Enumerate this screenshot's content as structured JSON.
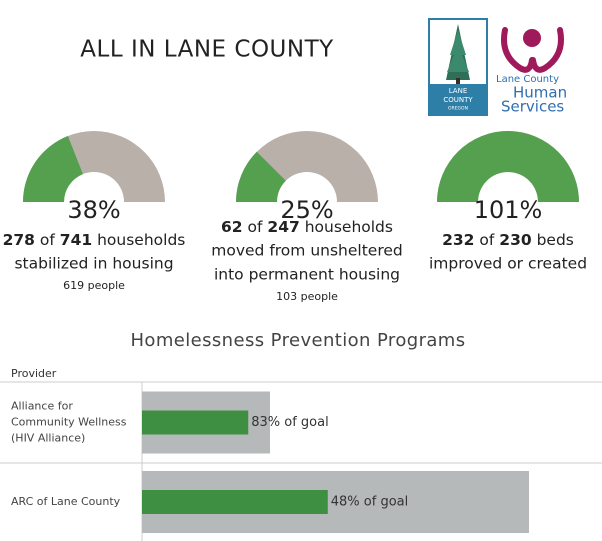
{
  "header": {
    "title": "ALL IN LANE COUNTY",
    "logo_left": {
      "lines": [
        "LANE",
        "COUNTY",
        "OREGON"
      ]
    },
    "logo_right": {
      "lines": [
        "Lane County",
        "Human",
        "Services"
      ]
    }
  },
  "gauges": {
    "fill_color": "#55a04f",
    "track_color": "#bab0aa",
    "items": [
      {
        "percent": 38,
        "percent_label": "38%",
        "numerator": 278,
        "connector": "of",
        "denominator": 741,
        "unit": "households",
        "lines": [
          "stabilized in housing"
        ],
        "note": "619 people"
      },
      {
        "percent": 25,
        "percent_label": "25%",
        "numerator": 62,
        "connector": "of",
        "denominator": 247,
        "unit": "households",
        "lines": [
          "moved from unsheltered",
          "into permanent housing"
        ],
        "note": "103 people"
      },
      {
        "percent": 101,
        "percent_label": "101%",
        "numerator": 232,
        "connector": "of",
        "denominator": 230,
        "unit": "beds",
        "lines": [
          "improved or created"
        ]
      }
    ]
  },
  "programs": {
    "title": "Homelessness Prevention Programs",
    "column_header": "Provider",
    "xlim": [
      0,
      400
    ],
    "goal_color": "#b6b9b9",
    "progress_color": "#3f8f43",
    "rows": [
      {
        "provider_lines": [
          "Alliance for",
          "Community Wellness",
          "(HIV Alliance)"
        ],
        "goal": 128,
        "percent": 83,
        "percent_label": "83% of goal"
      },
      {
        "provider_lines": [
          "ARC of Lane County"
        ],
        "goal": 387,
        "percent": 48,
        "percent_label": "48% of goal"
      }
    ]
  }
}
